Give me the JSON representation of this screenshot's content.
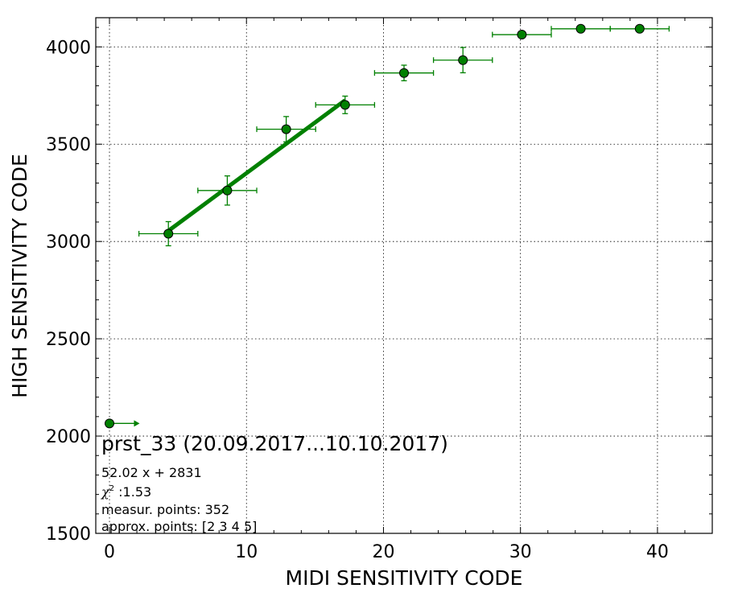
{
  "chart_data": {
    "type": "scatter",
    "title": "",
    "xlabel": "MIDI SENSITIVITY CODE",
    "ylabel": "HIGH SENSITIVITY CODE",
    "xlim": [
      -1,
      44
    ],
    "ylim": [
      1500,
      4150
    ],
    "xticks": [
      0,
      10,
      20,
      30,
      40
    ],
    "yticks": [
      1500,
      2000,
      2500,
      3000,
      3500,
      4000
    ],
    "grid": true,
    "color": "#008000",
    "points": [
      {
        "x": 4.3,
        "y": 3040,
        "xerr": 2.15,
        "yerr": 62
      },
      {
        "x": 8.6,
        "y": 3262,
        "xerr": 2.15,
        "yerr": 75
      },
      {
        "x": 12.9,
        "y": 3577,
        "xerr": 2.15,
        "yerr": 65
      },
      {
        "x": 17.2,
        "y": 3702,
        "xerr": 2.15,
        "yerr": 45
      },
      {
        "x": 21.5,
        "y": 3866,
        "xerr": 2.15,
        "yerr": 40
      },
      {
        "x": 25.8,
        "y": 3932,
        "xerr": 2.15,
        "yerr": 65
      },
      {
        "x": 30.1,
        "y": 4063,
        "xerr": 2.15,
        "yerr": 0
      },
      {
        "x": 34.4,
        "y": 4093,
        "xerr": 2.15,
        "yerr": 0
      },
      {
        "x": 38.7,
        "y": 4093,
        "xerr": 2.15,
        "yerr": 0
      }
    ],
    "arrow_point": {
      "x": 0,
      "y": 2065,
      "x_to": 2.2
    },
    "fit": {
      "slope": 52.02,
      "intercept": 2831,
      "x_range": [
        4.3,
        17.2
      ]
    },
    "annotations": {
      "title": "prst_33 (20.09.2017...10.10.2017)",
      "equation": "52.02 x + 2831",
      "chi_symbol": "χ",
      "chi_exp": "2",
      "chi_value": " :1.53",
      "measur_points": "measur. points: 352",
      "approx_points": "approx. points: [2 3 4 5]"
    }
  }
}
